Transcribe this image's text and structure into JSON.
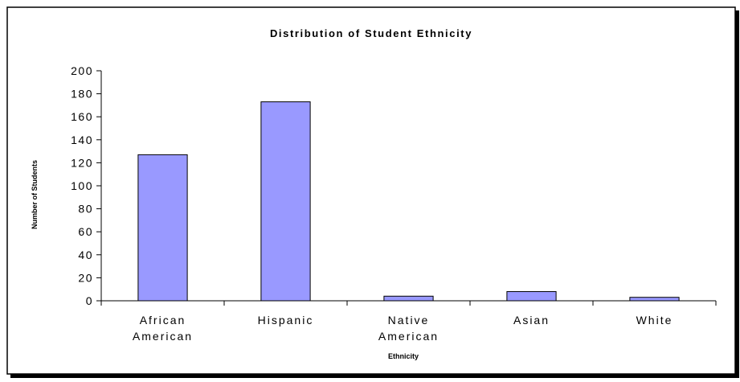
{
  "chart_data": {
    "type": "bar",
    "title": "Distribution of Student Ethnicity",
    "xlabel": "Ethnicity",
    "ylabel": "Number of Students",
    "categories": [
      [
        "African",
        "American"
      ],
      [
        "Hispanic"
      ],
      [
        "Native",
        "American"
      ],
      [
        "Asian"
      ],
      [
        "White"
      ]
    ],
    "values": [
      127,
      173,
      4,
      8,
      3
    ],
    "ylim": [
      0,
      200
    ],
    "yticks": [
      0,
      20,
      40,
      60,
      80,
      100,
      120,
      140,
      160,
      180,
      200
    ],
    "grid": false,
    "legend": "none",
    "bar_color": "#9999ff",
    "bar_edge_color": "#000000"
  }
}
